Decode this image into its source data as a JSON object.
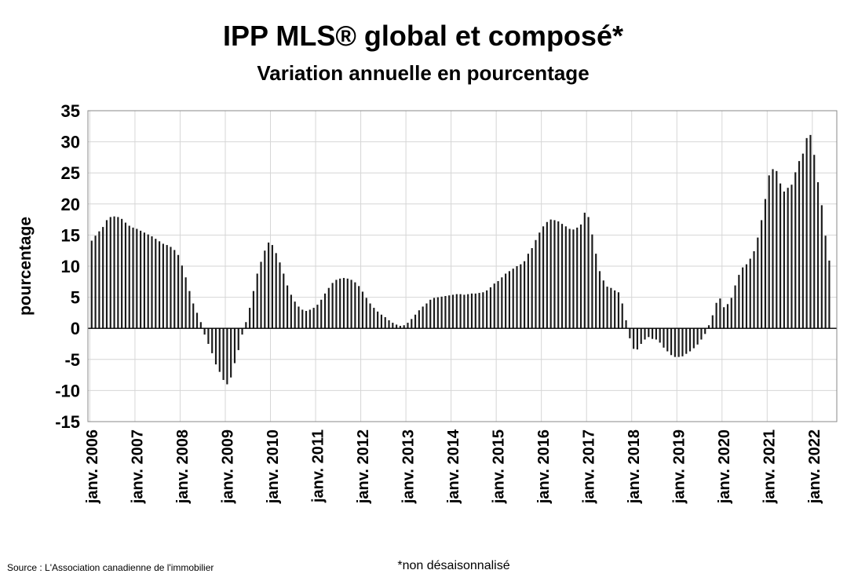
{
  "chart_data": {
    "type": "bar",
    "title": "IPP MLS® global et composé*",
    "subtitle": "Variation annuelle en pourcentage",
    "ylabel": "pourcentage",
    "xlabel": "",
    "ylim": [
      -15,
      35
    ],
    "yticks": [
      35,
      30,
      25,
      20,
      15,
      10,
      5,
      0,
      -5,
      -10,
      -15
    ],
    "grid": true,
    "legend": "none",
    "x_tick_labels": [
      "janv. 2006",
      "janv. 2007",
      "janv. 2008",
      "janv. 2009",
      "janv. 2010",
      "janv. 2011",
      "janv. 2012",
      "janv. 2013",
      "janv. 2014",
      "janv. 2015",
      "janv. 2016",
      "janv. 2017",
      "janv. 2018",
      "janv. 2019",
      "janv. 2020",
      "janv. 2021",
      "janv. 2022"
    ],
    "start": "janv. 2006",
    "frequency": "monthly",
    "values": [
      14.1,
      14.9,
      15.6,
      16.3,
      17.4,
      17.9,
      18.0,
      17.9,
      17.6,
      17.0,
      16.5,
      16.2,
      16.0,
      15.7,
      15.4,
      15.1,
      14.8,
      14.4,
      14.0,
      13.6,
      13.4,
      13.1,
      12.6,
      11.8,
      10.1,
      8.2,
      6.0,
      4.0,
      2.5,
      1.0,
      -1.0,
      -2.5,
      -4.0,
      -5.8,
      -7.0,
      -8.3,
      -9.0,
      -7.9,
      -5.6,
      -3.5,
      -1.0,
      1.0,
      3.3,
      6.0,
      8.8,
      10.7,
      12.5,
      13.8,
      13.4,
      12.1,
      10.6,
      8.8,
      6.9,
      5.4,
      4.3,
      3.5,
      3.0,
      2.8,
      3.0,
      3.3,
      3.8,
      4.6,
      5.6,
      6.5,
      7.3,
      7.8,
      8.0,
      8.1,
      8.0,
      7.8,
      7.4,
      6.8,
      5.9,
      4.9,
      4.0,
      3.3,
      2.7,
      2.2,
      1.8,
      1.3,
      0.9,
      0.6,
      0.4,
      0.5,
      0.9,
      1.5,
      2.2,
      2.9,
      3.5,
      4.0,
      4.6,
      4.9,
      5.0,
      5.1,
      5.2,
      5.3,
      5.4,
      5.5,
      5.5,
      5.4,
      5.5,
      5.6,
      5.6,
      5.7,
      5.8,
      6.1,
      6.6,
      7.2,
      7.6,
      8.2,
      8.8,
      9.2,
      9.6,
      10.0,
      10.3,
      10.8,
      12.0,
      12.9,
      14.2,
      15.4,
      16.4,
      17.1,
      17.5,
      17.4,
      17.2,
      16.8,
      16.4,
      16.0,
      15.9,
      16.2,
      16.7,
      18.6,
      17.9,
      15.1,
      12.0,
      9.2,
      7.7,
      6.7,
      6.5,
      6.1,
      5.8,
      4.0,
      1.3,
      -1.6,
      -3.3,
      -3.4,
      -2.5,
      -1.8,
      -1.4,
      -1.7,
      -1.8,
      -2.3,
      -3.1,
      -3.7,
      -4.3,
      -4.6,
      -4.6,
      -4.5,
      -4.1,
      -3.7,
      -3.2,
      -2.6,
      -1.8,
      -0.9,
      0.5,
      2.1,
      4.1,
      4.8,
      3.4,
      3.9,
      4.9,
      6.9,
      8.6,
      9.8,
      10.3,
      11.2,
      12.4,
      14.6,
      17.4,
      20.8,
      24.6,
      25.6,
      25.3,
      23.3,
      22.0,
      22.6,
      23.1,
      25.1,
      26.9,
      28.1,
      30.6,
      31.1,
      27.9,
      23.5,
      19.8,
      14.9,
      10.9
    ]
  },
  "footer": {
    "note": "*non désaisonnalisé",
    "source": "Source : L'Association canadienne de l'immobilier"
  }
}
